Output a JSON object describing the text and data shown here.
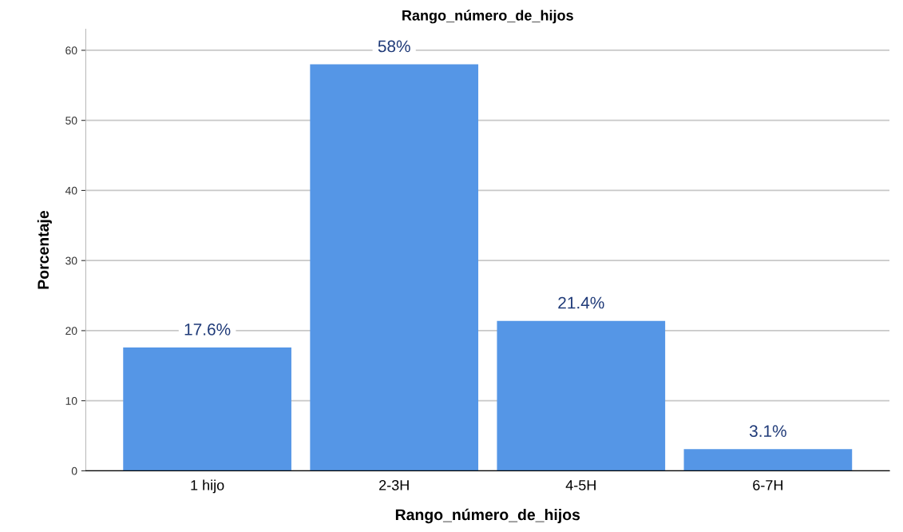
{
  "chart_data": {
    "type": "bar",
    "title": "Rango_número_de_hijos",
    "xlabel": "Rango_número_de_hijos",
    "ylabel": "Porcentaje",
    "categories": [
      "1 hijo",
      "2-3H",
      "4-5H",
      "6-7H"
    ],
    "values": [
      17.6,
      58,
      21.4,
      3.1
    ],
    "color": "#5596e6",
    "value_labels": [
      "17.6%",
      "58%",
      "21.4%",
      "3.1%"
    ],
    "ylim": [
      0,
      63
    ],
    "yticks": [
      0,
      10,
      20,
      30,
      40,
      50,
      60
    ],
    "grid": "y"
  }
}
